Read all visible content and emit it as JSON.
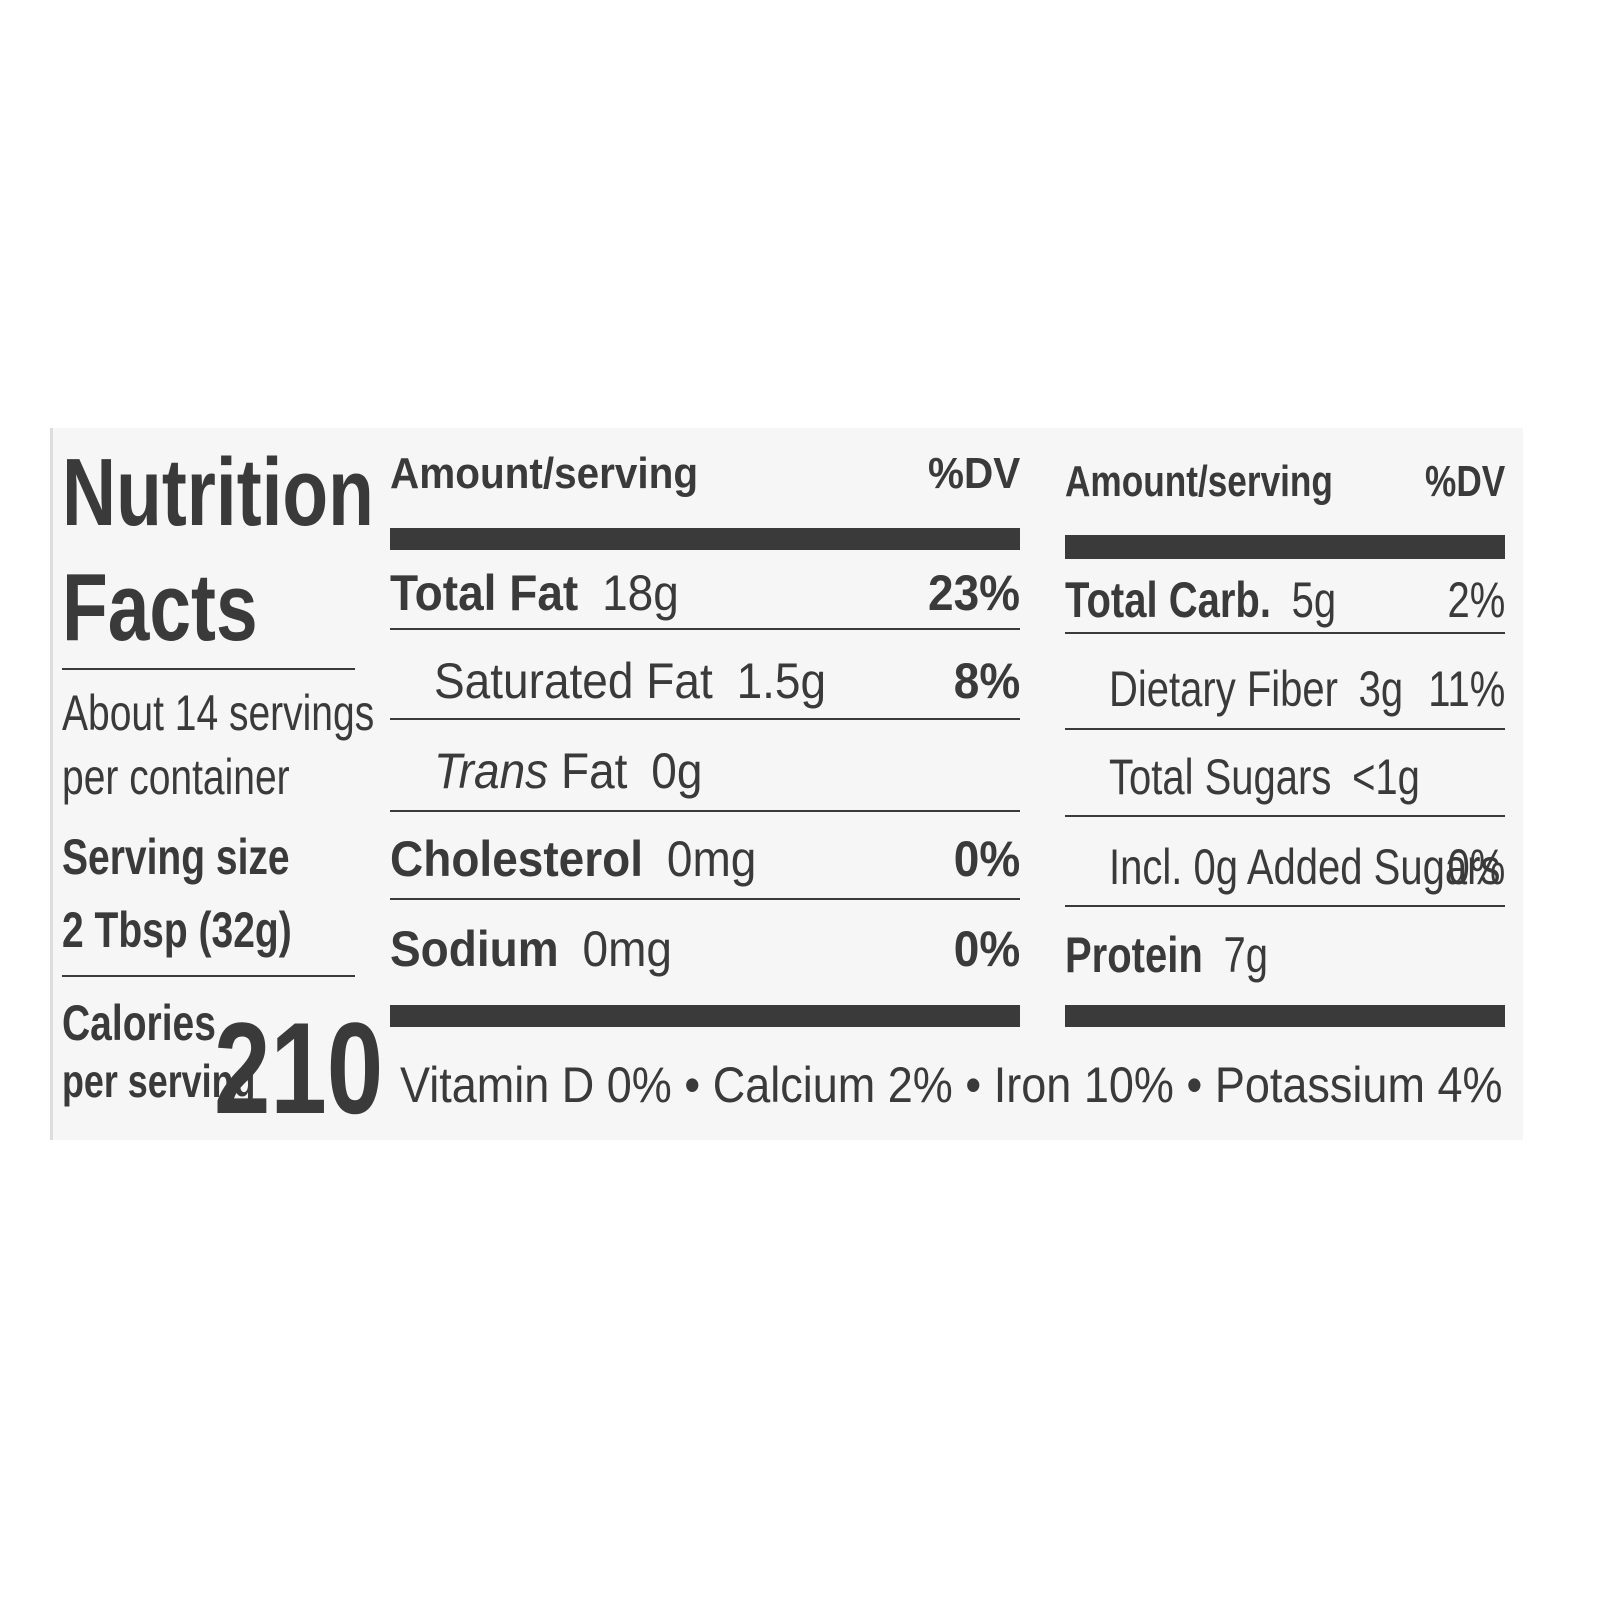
{
  "header": {
    "title_line1": "Nutrition",
    "title_line2": "Facts",
    "servings_line1": "About 14 servings",
    "servings_line2": "per container",
    "serving_size_label": "Serving size",
    "serving_size_value": "2 Tbsp (32g)",
    "calories_line1": "Calories",
    "calories_line2": "per serving",
    "calories_value": "210"
  },
  "left_table": {
    "amount_heading": "Amount/serving",
    "dv_heading": "%DV",
    "rows": [
      {
        "label": "Total Fat",
        "amount": "18g",
        "dv": "23%"
      },
      {
        "label": "Saturated Fat",
        "amount": "1.5g",
        "dv": "8%"
      },
      {
        "label_italic": "Trans",
        "label": "Fat",
        "amount": "0g"
      },
      {
        "label": "Cholesterol",
        "amount": "0mg",
        "dv": "0%"
      },
      {
        "label": "Sodium",
        "amount": "0mg",
        "dv": "0%"
      }
    ]
  },
  "right_table": {
    "amount_heading": "Amount/serving",
    "dv_heading": "%DV",
    "rows": [
      {
        "label": "Total Carb.",
        "amount": "5g",
        "dv": "2%"
      },
      {
        "label": "Dietary Fiber",
        "amount": "3g",
        "dv": "11%"
      },
      {
        "label": "Total Sugars",
        "amount": "<1g"
      },
      {
        "label": "Incl. 0g Added Sugars",
        "dv": "0%"
      },
      {
        "label": "Protein",
        "amount": "7g"
      }
    ]
  },
  "footer": {
    "items": [
      "Vitamin D 0%",
      "Calcium 2%",
      "Iron 10%",
      "Potassium 4%"
    ],
    "separator": "•"
  }
}
